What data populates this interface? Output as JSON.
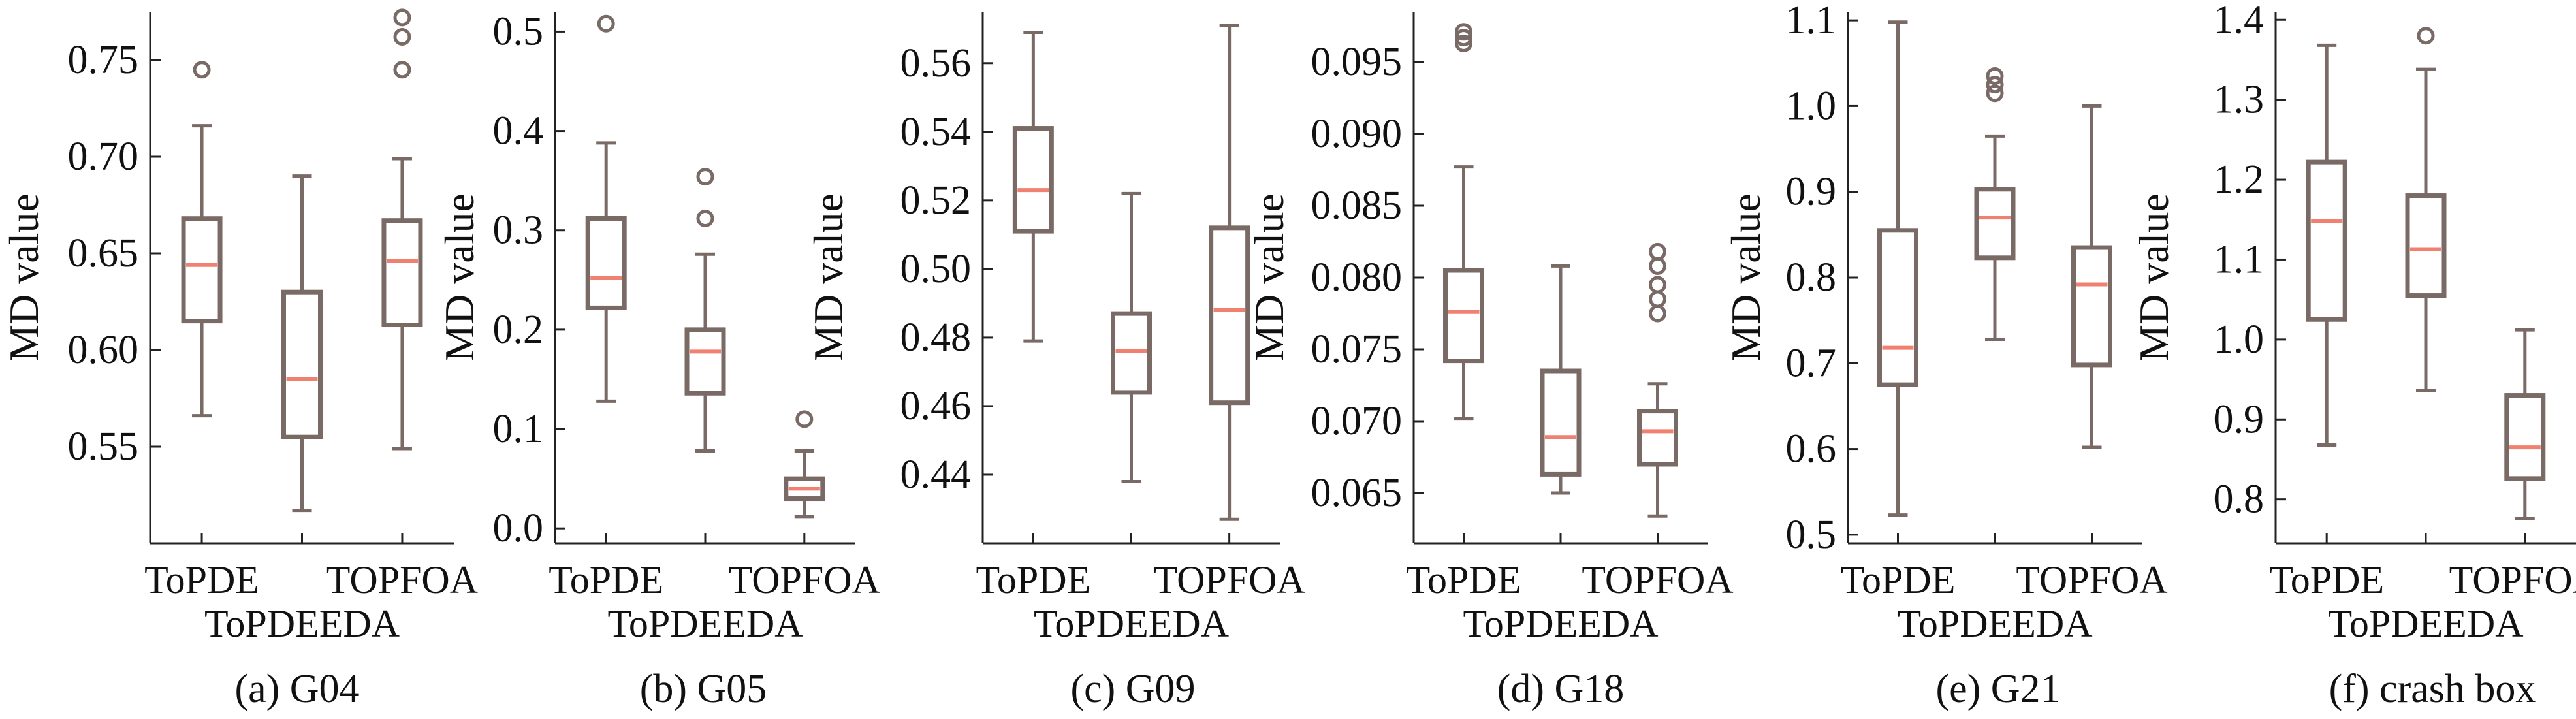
{
  "figure": {
    "box_color": "#7a6a66",
    "median_color": "#f08070",
    "axis_color": "#222222"
  },
  "chart_data": [
    {
      "type": "box",
      "caption": "(a) G04",
      "ylabel": "MD value",
      "ylim": [
        0.5,
        0.775
      ],
      "yticks": [
        0.55,
        0.6,
        0.65,
        0.7,
        0.75
      ],
      "ytick_labels": [
        "0.55",
        "0.60",
        "0.65",
        "0.70",
        "0.75"
      ],
      "categories": [
        "ToPDE",
        "ToPDEEDA",
        "TOPFOA"
      ],
      "boxes": [
        {
          "whislo": 0.566,
          "q1": 0.615,
          "med": 0.644,
          "q3": 0.668,
          "whishi": 0.716,
          "fliers": [
            0.745
          ]
        },
        {
          "whislo": 0.517,
          "q1": 0.555,
          "med": 0.585,
          "q3": 0.63,
          "whishi": 0.69,
          "fliers": []
        },
        {
          "whislo": 0.549,
          "q1": 0.613,
          "med": 0.646,
          "q3": 0.667,
          "whishi": 0.699,
          "fliers": [
            0.745,
            0.762,
            0.772
          ]
        }
      ]
    },
    {
      "type": "box",
      "caption": "(b) G05",
      "ylabel": "MD value",
      "ylim": [
        -0.015,
        0.52
      ],
      "yticks": [
        0.0,
        0.1,
        0.2,
        0.3,
        0.4,
        0.5
      ],
      "ytick_labels": [
        "0.0",
        "0.1",
        "0.2",
        "0.3",
        "0.4",
        "0.5"
      ],
      "categories": [
        "ToPDE",
        "ToPDEEDA",
        "TOPFOA"
      ],
      "boxes": [
        {
          "whislo": 0.128,
          "q1": 0.222,
          "med": 0.252,
          "q3": 0.312,
          "whishi": 0.388,
          "fliers": [
            0.508
          ]
        },
        {
          "whislo": 0.078,
          "q1": 0.136,
          "med": 0.178,
          "q3": 0.2,
          "whishi": 0.276,
          "fliers": [
            0.312,
            0.354
          ]
        },
        {
          "whislo": 0.012,
          "q1": 0.03,
          "med": 0.04,
          "q3": 0.05,
          "whishi": 0.078,
          "fliers": [
            0.11
          ]
        }
      ]
    },
    {
      "type": "box",
      "caption": "(c) G09",
      "ylabel": "MD value",
      "ylim": [
        0.42,
        0.575
      ],
      "yticks": [
        0.44,
        0.46,
        0.48,
        0.5,
        0.52,
        0.54,
        0.56
      ],
      "ytick_labels": [
        "0.44",
        "0.46",
        "0.48",
        "0.50",
        "0.52",
        "0.54",
        "0.56"
      ],
      "categories": [
        "ToPDE",
        "ToPDEEDA",
        "TOPFOA"
      ],
      "boxes": [
        {
          "whislo": 0.479,
          "q1": 0.511,
          "med": 0.523,
          "q3": 0.541,
          "whishi": 0.569,
          "fliers": []
        },
        {
          "whislo": 0.438,
          "q1": 0.464,
          "med": 0.476,
          "q3": 0.487,
          "whishi": 0.522,
          "fliers": []
        },
        {
          "whislo": 0.427,
          "q1": 0.461,
          "med": 0.488,
          "q3": 0.512,
          "whishi": 0.571,
          "fliers": []
        }
      ]
    },
    {
      "type": "box",
      "caption": "(d) G18",
      "ylabel": "MD value",
      "ylim": [
        0.0615,
        0.0985
      ],
      "yticks": [
        0.065,
        0.07,
        0.075,
        0.08,
        0.085,
        0.09,
        0.095
      ],
      "ytick_labels": [
        "0.065",
        "0.070",
        "0.075",
        "0.080",
        "0.085",
        "0.090",
        "0.095"
      ],
      "categories": [
        "ToPDE",
        "ToPDEEDA",
        "TOPFOA"
      ],
      "boxes": [
        {
          "whislo": 0.0702,
          "q1": 0.0742,
          "med": 0.0776,
          "q3": 0.0805,
          "whishi": 0.0877,
          "fliers": [
            0.0963,
            0.0967,
            0.0971
          ]
        },
        {
          "whislo": 0.065,
          "q1": 0.0663,
          "med": 0.0689,
          "q3": 0.0735,
          "whishi": 0.0808,
          "fliers": []
        },
        {
          "whislo": 0.0634,
          "q1": 0.067,
          "med": 0.0693,
          "q3": 0.0707,
          "whishi": 0.0726,
          "fliers": [
            0.0775,
            0.0785,
            0.0795,
            0.0808,
            0.0818
          ]
        }
      ]
    },
    {
      "type": "box",
      "caption": "(e) G21",
      "ylabel": "MD value",
      "ylim": [
        0.49,
        1.11
      ],
      "yticks": [
        0.5,
        0.6,
        0.7,
        0.8,
        0.9,
        1.0,
        1.1
      ],
      "ytick_labels": [
        "0.5",
        "0.6",
        "0.7",
        "0.8",
        "0.9",
        "1.0",
        "1.1"
      ],
      "categories": [
        "ToPDE",
        "ToPDEEDA",
        "TOPFOA"
      ],
      "boxes": [
        {
          "whislo": 0.523,
          "q1": 0.675,
          "med": 0.718,
          "q3": 0.855,
          "whishi": 1.098,
          "fliers": []
        },
        {
          "whislo": 0.728,
          "q1": 0.823,
          "med": 0.87,
          "q3": 0.903,
          "whishi": 0.965,
          "fliers": [
            1.015,
            1.025,
            1.035
          ]
        },
        {
          "whislo": 0.602,
          "q1": 0.698,
          "med": 0.792,
          "q3": 0.835,
          "whishi": 1.0,
          "fliers": []
        }
      ]
    },
    {
      "type": "box",
      "caption": "(f) crash box",
      "ylabel": "MD value",
      "ylim": [
        0.745,
        1.41
      ],
      "yticks": [
        0.8,
        0.9,
        1.0,
        1.1,
        1.2,
        1.3,
        1.4
      ],
      "ytick_labels": [
        "0.8",
        "0.9",
        "1.0",
        "1.1",
        "1.2",
        "1.3",
        "1.4"
      ],
      "categories": [
        "ToPDE",
        "ToPDEEDA",
        "TOPFOA"
      ],
      "boxes": [
        {
          "whislo": 0.868,
          "q1": 1.025,
          "med": 1.148,
          "q3": 1.222,
          "whishi": 1.368,
          "fliers": []
        },
        {
          "whislo": 0.936,
          "q1": 1.055,
          "med": 1.113,
          "q3": 1.18,
          "whishi": 1.338,
          "fliers": [
            1.38
          ]
        },
        {
          "whislo": 0.776,
          "q1": 0.826,
          "med": 0.865,
          "q3": 0.93,
          "whishi": 1.012,
          "fliers": []
        }
      ]
    }
  ]
}
